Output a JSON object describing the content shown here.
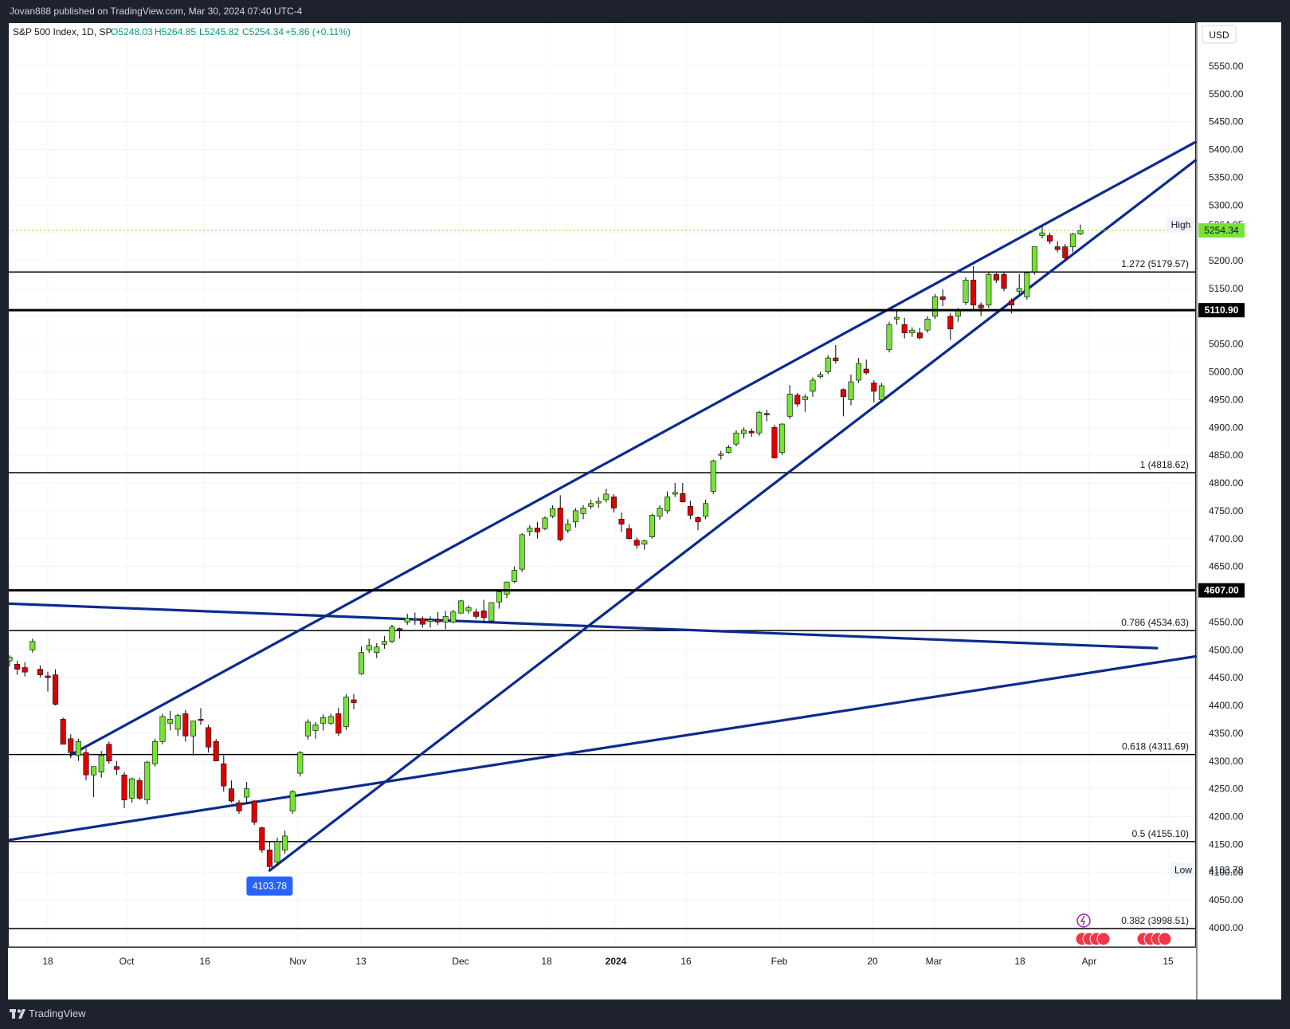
{
  "publisher": "Jovan888 published on TradingView.com, Mar 30, 2024 07:40 UTC-4",
  "brand": "TradingView",
  "legend": {
    "symbol": "S&P 500 Index, 1D, SP",
    "open": "O5248.03",
    "high": "H5264.85",
    "low": "L5245.82",
    "close": "C5254.34",
    "change": "+5.86 (+0.11%)"
  },
  "currency": "USD",
  "colors": {
    "up": "#76e336",
    "down": "#e00000",
    "trendline": "#0d2b8c",
    "background": "#ffffff",
    "frame": "#1e222d",
    "price_tag": "#76e336",
    "low_tag": "#2962ff"
  },
  "chart_data": {
    "type": "candlestick",
    "title": "S&P 500 Index, 1D, SP",
    "ylim": [
      3960,
      5610
    ],
    "y_ticks": [
      4000,
      4050,
      4100,
      4150,
      4200,
      4250,
      4300,
      4350,
      4400,
      4450,
      4500,
      4550,
      4600,
      4650,
      4700,
      4750,
      4800,
      4850,
      4900,
      4950,
      5000,
      5050,
      5100,
      5150,
      5200,
      5250,
      5300,
      5350,
      5400,
      5450,
      5500,
      5550
    ],
    "x_labels": [
      "18",
      "Oct",
      "16",
      "Nov",
      "13",
      "Dec",
      "18",
      "2024",
      "16",
      "Feb",
      "20",
      "Mar",
      "18",
      "Apr",
      "15"
    ],
    "grid": true,
    "candles": [
      {
        "o": 4480,
        "h": 4490,
        "l": 4470,
        "c": 4487
      },
      {
        "o": 4474,
        "h": 4480,
        "l": 4455,
        "c": 4465
      },
      {
        "o": 4468,
        "h": 4478,
        "l": 4452,
        "c": 4460
      },
      {
        "o": 4500,
        "h": 4520,
        "l": 4495,
        "c": 4515
      },
      {
        "o": 4465,
        "h": 4472,
        "l": 4450,
        "c": 4455
      },
      {
        "o": 4453,
        "h": 4460,
        "l": 4425,
        "c": 4450
      },
      {
        "o": 4455,
        "h": 4465,
        "l": 4400,
        "c": 4402
      },
      {
        "o": 4375,
        "h": 4378,
        "l": 4330,
        "c": 4330
      },
      {
        "o": 4340,
        "h": 4348,
        "l": 4305,
        "c": 4315
      },
      {
        "o": 4310,
        "h": 4340,
        "l": 4300,
        "c": 4335
      },
      {
        "o": 4315,
        "h": 4322,
        "l": 4265,
        "c": 4275
      },
      {
        "o": 4275,
        "h": 4290,
        "l": 4235,
        "c": 4290
      },
      {
        "o": 4280,
        "h": 4318,
        "l": 4270,
        "c": 4310
      },
      {
        "o": 4330,
        "h": 4335,
        "l": 4295,
        "c": 4300
      },
      {
        "o": 4290,
        "h": 4300,
        "l": 4275,
        "c": 4285
      },
      {
        "o": 4275,
        "h": 4280,
        "l": 4215,
        "c": 4230
      },
      {
        "o": 4233,
        "h": 4270,
        "l": 4225,
        "c": 4268
      },
      {
        "o": 4265,
        "h": 4270,
        "l": 4230,
        "c": 4233
      },
      {
        "o": 4230,
        "h": 4300,
        "l": 4222,
        "c": 4298
      },
      {
        "o": 4295,
        "h": 4340,
        "l": 4290,
        "c": 4335
      },
      {
        "o": 4335,
        "h": 4385,
        "l": 4330,
        "c": 4380
      },
      {
        "o": 4368,
        "h": 4390,
        "l": 4355,
        "c": 4375
      },
      {
        "o": 4357,
        "h": 4385,
        "l": 4345,
        "c": 4382
      },
      {
        "o": 4385,
        "h": 4392,
        "l": 4335,
        "c": 4345
      },
      {
        "o": 4345,
        "h": 4372,
        "l": 4310,
        "c": 4372
      },
      {
        "o": 4375,
        "h": 4395,
        "l": 4365,
        "c": 4373
      },
      {
        "o": 4360,
        "h": 4365,
        "l": 4315,
        "c": 4325
      },
      {
        "o": 4335,
        "h": 4340,
        "l": 4300,
        "c": 4300
      },
      {
        "o": 4295,
        "h": 4310,
        "l": 4245,
        "c": 4255
      },
      {
        "o": 4250,
        "h": 4265,
        "l": 4225,
        "c": 4228
      },
      {
        "o": 4225,
        "h": 4230,
        "l": 4205,
        "c": 4210
      },
      {
        "o": 4235,
        "h": 4262,
        "l": 4225,
        "c": 4250
      },
      {
        "o": 4228,
        "h": 4230,
        "l": 4185,
        "c": 4190
      },
      {
        "o": 4180,
        "h": 4182,
        "l": 4135,
        "c": 4140
      },
      {
        "o": 4140,
        "h": 4155,
        "l": 4104,
        "c": 4110
      },
      {
        "o": 4118,
        "h": 4162,
        "l": 4112,
        "c": 4155
      },
      {
        "o": 4140,
        "h": 4175,
        "l": 4133,
        "c": 4165
      },
      {
        "o": 4210,
        "h": 4248,
        "l": 4205,
        "c": 4245
      },
      {
        "o": 4278,
        "h": 4318,
        "l": 4272,
        "c": 4315
      },
      {
        "o": 4345,
        "h": 4375,
        "l": 4338,
        "c": 4370
      },
      {
        "o": 4355,
        "h": 4370,
        "l": 4340,
        "c": 4365
      },
      {
        "o": 4368,
        "h": 4384,
        "l": 4355,
        "c": 4378
      },
      {
        "o": 4368,
        "h": 4385,
        "l": 4365,
        "c": 4380
      },
      {
        "o": 4385,
        "h": 4396,
        "l": 4345,
        "c": 4350
      },
      {
        "o": 4362,
        "h": 4420,
        "l": 4356,
        "c": 4415
      },
      {
        "o": 4410,
        "h": 4420,
        "l": 4393,
        "c": 4405
      },
      {
        "o": 4457,
        "h": 4506,
        "l": 4455,
        "c": 4495
      },
      {
        "o": 4500,
        "h": 4520,
        "l": 4494,
        "c": 4508
      },
      {
        "o": 4495,
        "h": 4512,
        "l": 4485,
        "c": 4505
      },
      {
        "o": 4510,
        "h": 4525,
        "l": 4502,
        "c": 4515
      },
      {
        "o": 4515,
        "h": 4545,
        "l": 4512,
        "c": 4541
      },
      {
        "o": 4538,
        "h": 4540,
        "l": 4520,
        "c": 4536
      },
      {
        "o": 4550,
        "h": 4565,
        "l": 4545,
        "c": 4557
      },
      {
        "o": 4555,
        "h": 4567,
        "l": 4545,
        "c": 4556
      },
      {
        "o": 4556,
        "h": 4560,
        "l": 4540,
        "c": 4546
      },
      {
        "o": 4551,
        "h": 4560,
        "l": 4540,
        "c": 4554
      },
      {
        "o": 4554,
        "h": 4568,
        "l": 4545,
        "c": 4550
      },
      {
        "o": 4550,
        "h": 4570,
        "l": 4537,
        "c": 4560
      },
      {
        "o": 4550,
        "h": 4572,
        "l": 4548,
        "c": 4568
      },
      {
        "o": 4566,
        "h": 4590,
        "l": 4565,
        "c": 4588
      },
      {
        "o": 4570,
        "h": 4580,
        "l": 4565,
        "c": 4576
      },
      {
        "o": 4568,
        "h": 4574,
        "l": 4555,
        "c": 4560
      },
      {
        "o": 4570,
        "h": 4590,
        "l": 4548,
        "c": 4558
      },
      {
        "o": 4552,
        "h": 4584,
        "l": 4548,
        "c": 4585
      },
      {
        "o": 4586,
        "h": 4608,
        "l": 4574,
        "c": 4604
      },
      {
        "o": 4600,
        "h": 4618,
        "l": 4593,
        "c": 4622
      },
      {
        "o": 4623,
        "h": 4650,
        "l": 4620,
        "c": 4643
      },
      {
        "o": 4645,
        "h": 4710,
        "l": 4640,
        "c": 4707
      },
      {
        "o": 4713,
        "h": 4724,
        "l": 4705,
        "c": 4719
      },
      {
        "o": 4719,
        "h": 4730,
        "l": 4700,
        "c": 4712
      },
      {
        "o": 4718,
        "h": 4740,
        "l": 4715,
        "c": 4737
      },
      {
        "o": 4740,
        "h": 4760,
        "l": 4737,
        "c": 4754
      },
      {
        "o": 4755,
        "h": 4778,
        "l": 4695,
        "c": 4698
      },
      {
        "o": 4715,
        "h": 4735,
        "l": 4710,
        "c": 4726
      },
      {
        "o": 4730,
        "h": 4755,
        "l": 4720,
        "c": 4750
      },
      {
        "o": 4745,
        "h": 4760,
        "l": 4735,
        "c": 4755
      },
      {
        "o": 4758,
        "h": 4770,
        "l": 4753,
        "c": 4763
      },
      {
        "o": 4764,
        "h": 4774,
        "l": 4755,
        "c": 4767
      },
      {
        "o": 4770,
        "h": 4790,
        "l": 4765,
        "c": 4780
      },
      {
        "o": 4775,
        "h": 4780,
        "l": 4747,
        "c": 4755
      },
      {
        "o": 4735,
        "h": 4747,
        "l": 4712,
        "c": 4726
      },
      {
        "o": 4718,
        "h": 4726,
        "l": 4698,
        "c": 4700
      },
      {
        "o": 4697,
        "h": 4702,
        "l": 4682,
        "c": 4688
      },
      {
        "o": 4690,
        "h": 4698,
        "l": 4680,
        "c": 4696
      },
      {
        "o": 4703,
        "h": 4745,
        "l": 4700,
        "c": 4742
      },
      {
        "o": 4740,
        "h": 4760,
        "l": 4734,
        "c": 4755
      },
      {
        "o": 4750,
        "h": 4785,
        "l": 4745,
        "c": 4775
      },
      {
        "o": 4780,
        "h": 4800,
        "l": 4775,
        "c": 4783
      },
      {
        "o": 4781,
        "h": 4800,
        "l": 4765,
        "c": 4766
      },
      {
        "o": 4758,
        "h": 4768,
        "l": 4735,
        "c": 4742
      },
      {
        "o": 4738,
        "h": 4740,
        "l": 4715,
        "c": 4730
      },
      {
        "o": 4740,
        "h": 4770,
        "l": 4735,
        "c": 4763
      },
      {
        "o": 4785,
        "h": 4842,
        "l": 4780,
        "c": 4840
      },
      {
        "o": 4850,
        "h": 4858,
        "l": 4842,
        "c": 4852
      },
      {
        "o": 4855,
        "h": 4868,
        "l": 4853,
        "c": 4864
      },
      {
        "o": 4870,
        "h": 4895,
        "l": 4866,
        "c": 4890
      },
      {
        "o": 4889,
        "h": 4900,
        "l": 4880,
        "c": 4895
      },
      {
        "o": 4893,
        "h": 4898,
        "l": 4883,
        "c": 4890
      },
      {
        "o": 4890,
        "h": 4930,
        "l": 4885,
        "c": 4927
      },
      {
        "o": 4925,
        "h": 4932,
        "l": 4911,
        "c": 4924
      },
      {
        "o": 4900,
        "h": 4905,
        "l": 4845,
        "c": 4845
      },
      {
        "o": 4855,
        "h": 4908,
        "l": 4850,
        "c": 4906
      },
      {
        "o": 4920,
        "h": 4976,
        "l": 4915,
        "c": 4960
      },
      {
        "o": 4958,
        "h": 4962,
        "l": 4937,
        "c": 4942
      },
      {
        "o": 4950,
        "h": 4960,
        "l": 4928,
        "c": 4955
      },
      {
        "o": 4965,
        "h": 4990,
        "l": 4955,
        "c": 4985
      },
      {
        "o": 4991,
        "h": 5000,
        "l": 4988,
        "c": 4995
      },
      {
        "o": 5000,
        "h": 5030,
        "l": 4996,
        "c": 5025
      },
      {
        "o": 5025,
        "h": 5048,
        "l": 5015,
        "c": 5020
      },
      {
        "o": 4968,
        "h": 4970,
        "l": 4920,
        "c": 4955
      },
      {
        "o": 4950,
        "h": 4995,
        "l": 4940,
        "c": 4982
      },
      {
        "o": 4985,
        "h": 5025,
        "l": 4980,
        "c": 5015
      },
      {
        "o": 5005,
        "h": 5022,
        "l": 4995,
        "c": 4998
      },
      {
        "o": 4980,
        "h": 4985,
        "l": 4945,
        "c": 4965
      },
      {
        "o": 4950,
        "h": 4980,
        "l": 4945,
        "c": 4975
      },
      {
        "o": 5040,
        "h": 5090,
        "l": 5035,
        "c": 5085
      },
      {
        "o": 5095,
        "h": 5112,
        "l": 5085,
        "c": 5098
      },
      {
        "o": 5085,
        "h": 5097,
        "l": 5060,
        "c": 5070
      },
      {
        "o": 5070,
        "h": 5080,
        "l": 5063,
        "c": 5075
      },
      {
        "o": 5070,
        "h": 5079,
        "l": 5058,
        "c": 5061
      },
      {
        "o": 5075,
        "h": 5100,
        "l": 5070,
        "c": 5095
      },
      {
        "o": 5100,
        "h": 5140,
        "l": 5095,
        "c": 5135
      },
      {
        "o": 5135,
        "h": 5148,
        "l": 5118,
        "c": 5130
      },
      {
        "o": 5100,
        "h": 5106,
        "l": 5057,
        "c": 5077
      },
      {
        "o": 5100,
        "h": 5115,
        "l": 5090,
        "c": 5110
      },
      {
        "o": 5125,
        "h": 5170,
        "l": 5120,
        "c": 5165
      },
      {
        "o": 5165,
        "h": 5190,
        "l": 5110,
        "c": 5120
      },
      {
        "o": 5120,
        "h": 5125,
        "l": 5100,
        "c": 5115
      },
      {
        "o": 5120,
        "h": 5180,
        "l": 5115,
        "c": 5175
      },
      {
        "o": 5175,
        "h": 5180,
        "l": 5160,
        "c": 5165
      },
      {
        "o": 5175,
        "h": 5180,
        "l": 5145,
        "c": 5150
      },
      {
        "o": 5128,
        "h": 5132,
        "l": 5105,
        "c": 5120
      },
      {
        "o": 5145,
        "h": 5176,
        "l": 5140,
        "c": 5150
      },
      {
        "o": 5135,
        "h": 5180,
        "l": 5130,
        "c": 5178
      },
      {
        "o": 5180,
        "h": 5225,
        "l": 5175,
        "c": 5225
      },
      {
        "o": 5245,
        "h": 5262,
        "l": 5240,
        "c": 5250
      },
      {
        "o": 5245,
        "h": 5250,
        "l": 5230,
        "c": 5235
      },
      {
        "o": 5225,
        "h": 5235,
        "l": 5215,
        "c": 5220
      },
      {
        "o": 5225,
        "h": 5230,
        "l": 5200,
        "c": 5205
      },
      {
        "o": 5225,
        "h": 5250,
        "l": 5215,
        "c": 5248
      },
      {
        "o": 5248,
        "h": 5265,
        "l": 5246,
        "c": 5254
      }
    ],
    "fib_levels": [
      {
        "label": "1.272 (5179.57)",
        "value": 5179.57
      },
      {
        "label": "1 (4818.62)",
        "value": 4818.62
      },
      {
        "label": "0.786 (4534.63)",
        "value": 4534.63
      },
      {
        "label": "0.618 (4311.69)",
        "value": 4311.69
      },
      {
        "label": "0.5 (4155.10)",
        "value": 4155.1
      },
      {
        "label": "0.382 (3998.51)",
        "value": 3998.51
      }
    ],
    "horizontal_levels": [
      {
        "label": "5110.90",
        "value": 5110.9
      },
      {
        "label": "4607.00",
        "value": 4607.0
      }
    ],
    "trendlines": [
      {
        "from": [
          8,
          4311
        ],
        "to": [
          155,
          5413
        ]
      },
      {
        "from": [
          34,
          4103
        ],
        "to": [
          155,
          5380
        ]
      },
      {
        "from": [
          0,
          4583
        ],
        "to": [
          150,
          4503
        ]
      },
      {
        "from": [
          0,
          4158
        ],
        "to": [
          155,
          4488
        ]
      }
    ],
    "price_markers": {
      "high_label": "High",
      "high_value": "5264.85",
      "last_value": "5254.34",
      "low_label": "Low",
      "low_value": "4103.78",
      "low_bubble": "4103.78"
    }
  }
}
